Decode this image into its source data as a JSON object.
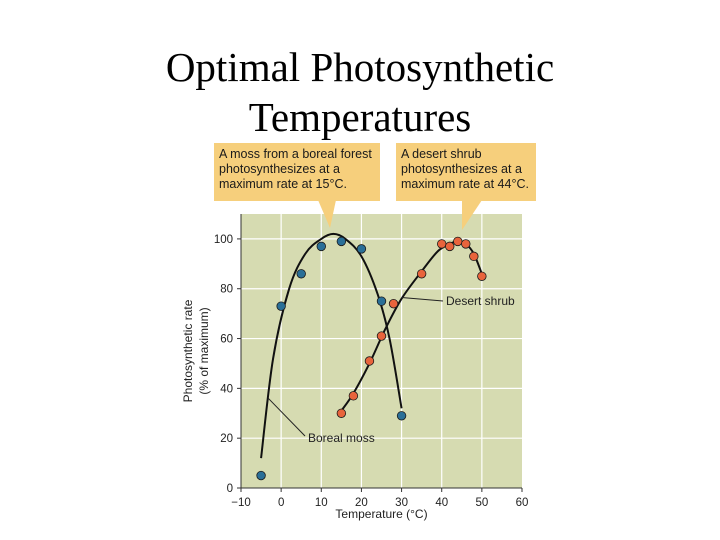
{
  "slide": {
    "title_line1": "Optimal Photosynthetic",
    "title_line2": "Temperatures"
  },
  "callouts": {
    "moss": [
      "A moss from a boreal forest",
      "photosynthesizes at a",
      "maximum rate at 15°C."
    ],
    "desert": [
      "A desert shrub",
      "photosynthesizes at a",
      "maximum rate at 44°C."
    ]
  },
  "colors": {
    "plot_bg": "#d6dbb1",
    "callout_bg": "#f6cf7c",
    "moss_points": "#2a6f97",
    "desert_points": "#e8643c",
    "curve": "#111111"
  },
  "chart_data": {
    "type": "scatter",
    "xlabel": "Temperature (°C)",
    "ylabel_line1": "Photosynthetic rate",
    "ylabel_line2": "(% of maximum)",
    "xlim": [
      -10,
      60
    ],
    "ylim": [
      0,
      110
    ],
    "xticks": [
      -10,
      0,
      10,
      20,
      30,
      40,
      50,
      60
    ],
    "xtick_labels": [
      "−10",
      "0",
      "10",
      "20",
      "30",
      "40",
      "50",
      "60"
    ],
    "yticks": [
      0,
      20,
      40,
      60,
      80,
      100
    ],
    "ytick_labels": [
      "0",
      "20",
      "40",
      "60",
      "80",
      "100"
    ],
    "grid": true,
    "series": [
      {
        "name": "Boreal moss",
        "color": "#2a6f97",
        "points": [
          [
            -5,
            5
          ],
          [
            0,
            73
          ],
          [
            5,
            86
          ],
          [
            10,
            97
          ],
          [
            15,
            99
          ],
          [
            20,
            96
          ],
          [
            25,
            75
          ],
          [
            30,
            29
          ]
        ],
        "curve": [
          [
            -5,
            12
          ],
          [
            -2,
            52
          ],
          [
            2,
            80
          ],
          [
            6,
            94
          ],
          [
            10,
            100
          ],
          [
            13,
            102
          ],
          [
            16,
            100
          ],
          [
            20,
            93
          ],
          [
            24,
            78
          ],
          [
            27,
            60
          ],
          [
            30,
            32
          ]
        ]
      },
      {
        "name": "Desert shrub",
        "color": "#e8643c",
        "points": [
          [
            15,
            30
          ],
          [
            18,
            37
          ],
          [
            22,
            51
          ],
          [
            25,
            61
          ],
          [
            28,
            74
          ],
          [
            35,
            86
          ],
          [
            40,
            98
          ],
          [
            42,
            97
          ],
          [
            44,
            99
          ],
          [
            46,
            98
          ],
          [
            48,
            93
          ],
          [
            50,
            85
          ]
        ],
        "curve": [
          [
            15,
            31
          ],
          [
            18,
            38
          ],
          [
            22,
            50
          ],
          [
            26,
            64
          ],
          [
            30,
            76
          ],
          [
            35,
            87
          ],
          [
            39,
            95
          ],
          [
            42,
            98
          ],
          [
            44,
            99
          ],
          [
            46,
            98
          ],
          [
            48,
            94
          ],
          [
            50,
            86
          ]
        ]
      }
    ]
  }
}
